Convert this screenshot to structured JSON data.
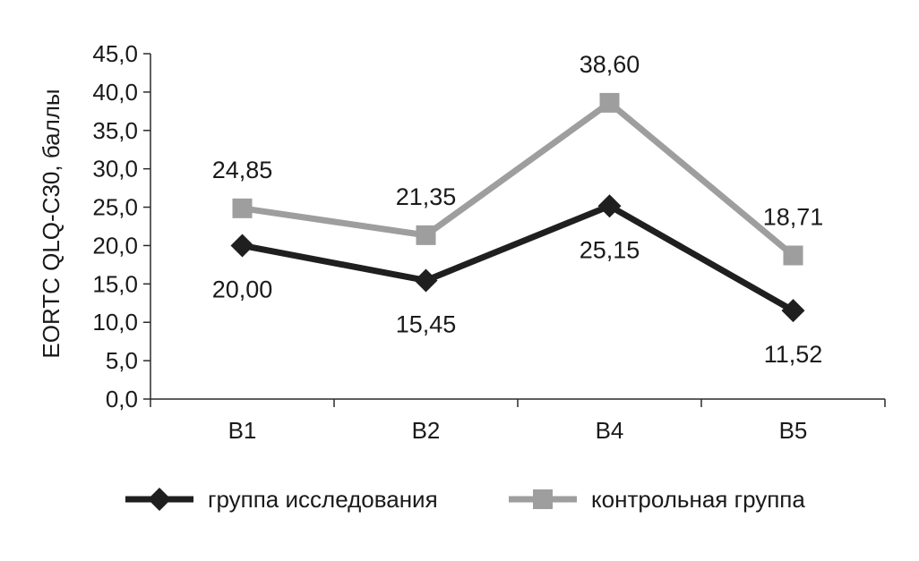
{
  "chart_data": {
    "type": "line",
    "title": "",
    "xlabel": "",
    "ylabel": "EORTC QLQ-C30, баллы",
    "categories": [
      "B1",
      "B2",
      "B4",
      "B5"
    ],
    "ylim": [
      0,
      45
    ],
    "yticks": [
      "0,0",
      "5,0",
      "10,0",
      "15,0",
      "20,0",
      "25,0",
      "30,0",
      "35,0",
      "40,0",
      "45,0"
    ],
    "grid": false,
    "legend_position": "bottom",
    "series": [
      {
        "name": "группа исследования",
        "values": [
          20.0,
          15.45,
          25.15,
          11.52
        ],
        "labels": [
          "20,00",
          "15,45",
          "25,15",
          "11,52"
        ],
        "color": "#1f1f1f",
        "marker": "diamond",
        "label_position": "below"
      },
      {
        "name": "контрольная группа",
        "values": [
          24.85,
          21.35,
          38.6,
          18.71
        ],
        "labels": [
          "24,85",
          "21,35",
          "38,60",
          "18,71"
        ],
        "color": "#9e9e9e",
        "marker": "square",
        "label_position": "above"
      }
    ]
  }
}
